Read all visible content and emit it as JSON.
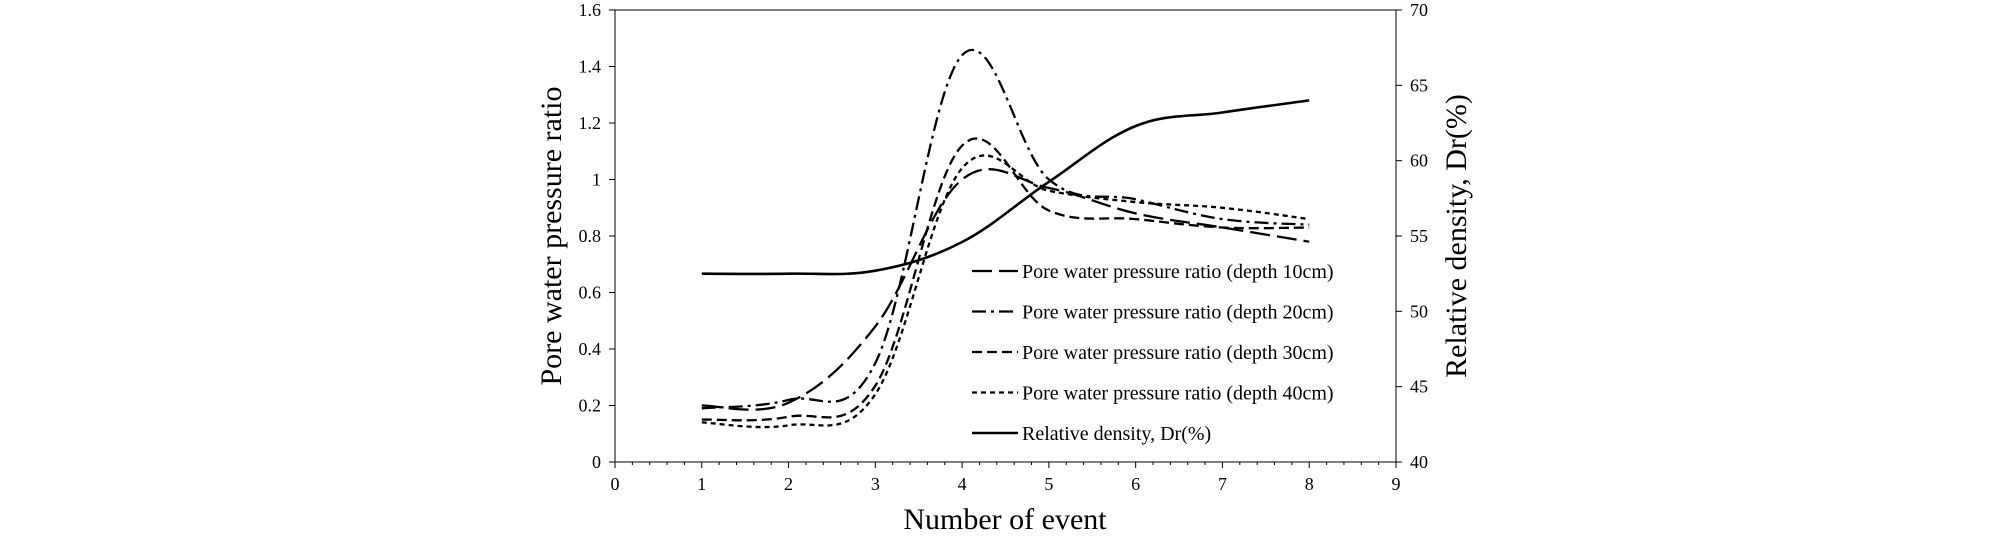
{
  "chart_data": {
    "type": "line",
    "xlabel": "Number of event",
    "ylabel": "Pore water pressure ratio",
    "y2label": "Relative density, Dr(%)",
    "xlim": [
      0,
      9
    ],
    "ylim": [
      0,
      1.6
    ],
    "y2lim": [
      40,
      70
    ],
    "xticks": [
      "0",
      "1",
      "2",
      "3",
      "4",
      "5",
      "6",
      "7",
      "8",
      "9"
    ],
    "yticks": [
      "0",
      "0.2",
      "0.4",
      "0.6",
      "0.8",
      "1",
      "1.2",
      "1.4",
      "1.6"
    ],
    "y2ticks": [
      "40",
      "45",
      "50",
      "55",
      "60",
      "65",
      "70"
    ],
    "x": [
      1,
      2,
      3,
      4,
      5,
      6,
      7,
      8
    ],
    "grid": false,
    "legend_position": "lower-right",
    "series": [
      {
        "name": "Pore water pressure ratio (depth 10cm)",
        "axis": "left",
        "dash": "long-dash",
        "values": [
          0.2,
          0.21,
          0.48,
          1.0,
          0.97,
          0.88,
          0.83,
          0.78
        ]
      },
      {
        "name": "Pore water pressure ratio (depth 20cm)",
        "axis": "left",
        "dash": "dash-dot",
        "values": [
          0.19,
          0.22,
          0.35,
          1.44,
          1.0,
          0.93,
          0.86,
          0.84
        ]
      },
      {
        "name": "Pore water pressure ratio (depth 30cm)",
        "axis": "left",
        "dash": "dash",
        "values": [
          0.15,
          0.16,
          0.27,
          1.12,
          0.89,
          0.86,
          0.83,
          0.83
        ]
      },
      {
        "name": "Pore water pressure ratio (depth 40cm)",
        "axis": "left",
        "dash": "short-dash",
        "values": [
          0.14,
          0.13,
          0.24,
          1.04,
          0.96,
          0.92,
          0.9,
          0.86
        ]
      },
      {
        "name": "Relative density, Dr(%)",
        "axis": "right",
        "dash": "solid",
        "values": [
          52.5,
          52.5,
          52.7,
          54.6,
          58.6,
          62.3,
          63.2,
          64.0
        ]
      }
    ]
  }
}
